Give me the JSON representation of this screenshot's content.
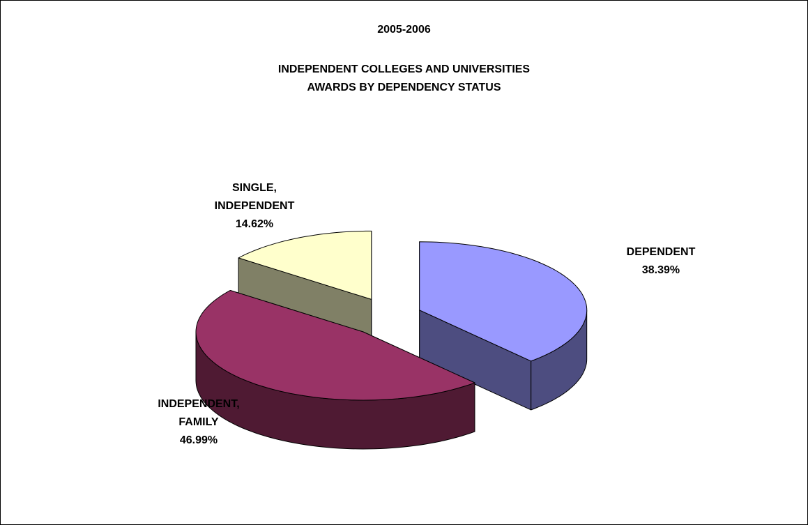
{
  "chart_data": {
    "type": "pie3d",
    "title": "2005-2006",
    "subtitle": [
      "INDEPENDENT COLLEGES AND UNIVERSITIES",
      "AWARDS BY DEPENDENCY STATUS"
    ],
    "categories": [
      "DEPENDENT",
      "INDEPENDENT, FAMILY",
      "SINGLE, INDEPENDENT"
    ],
    "values": [
      38.39,
      46.99,
      14.62
    ],
    "value_labels": [
      "38.39%",
      "46.99%",
      "14.62%"
    ],
    "colors": [
      "#9999ff",
      "#993366",
      "#ffffcc"
    ],
    "side_colors": [
      "#4d4d80",
      "#4f1a33",
      "#808066"
    ]
  }
}
